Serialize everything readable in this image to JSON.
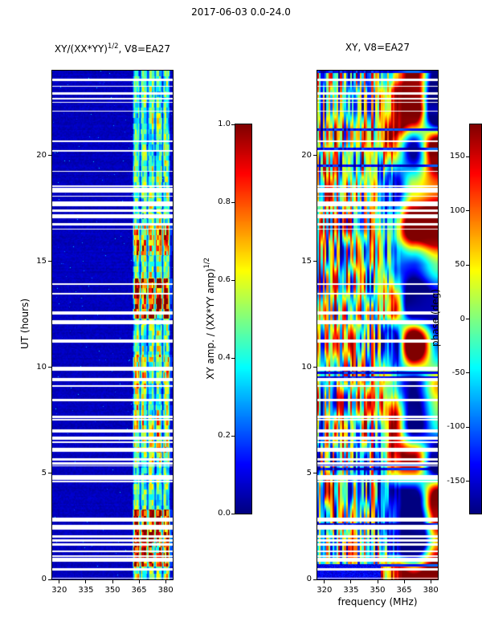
{
  "figure_title": "2017-06-03 0.0-24.0",
  "panels": {
    "left": {
      "title_base": "XY/(XX*YY)",
      "title_sup": "1/2",
      "title_rest": ", V8=EA27",
      "ylabel": "UT (hours)"
    },
    "right": {
      "title": "XY, V8=EA27",
      "xlabel": "frequency (MHz)"
    }
  },
  "colorbars": {
    "amp": {
      "label_base": "XY amp. / (XX*YY amp)",
      "label_sup": "1/2",
      "tick_labels": [
        "0.0",
        "0.2",
        "0.4",
        "0.6",
        "0.8",
        "1.0"
      ]
    },
    "phase": {
      "label": "phase (deg)",
      "tick_labels": [
        "-150",
        "-100",
        "-50",
        "0",
        "50",
        "100",
        "150"
      ]
    }
  },
  "chart_data": [
    {
      "type": "heatmap",
      "panel": "left",
      "title": "XY/(XX*YY)^(1/2), V8=EA27",
      "xlabel": "frequency (MHz)",
      "ylabel": "UT (hours)",
      "xlim": [
        316,
        384
      ],
      "ylim": [
        0,
        24
      ],
      "x_ticks": [
        320,
        335,
        350,
        365,
        380
      ],
      "y_ticks": [
        0,
        5,
        10,
        15,
        20
      ],
      "colormap": "jet",
      "grid": false,
      "colorbar": {
        "label": "XY amp. / (XX*YY amp)^(1/2)",
        "range": [
          0.0,
          1.0
        ],
        "ticks": [
          0.0,
          0.2,
          0.4,
          0.6,
          0.8,
          1.0
        ]
      },
      "content": {
        "background_level": 0.05,
        "active_band_mhz": [
          361.5,
          383.5
        ],
        "band_typical_level": [
          0.2,
          0.6
        ],
        "strong_burst_intervals_ut": [
          [
            0.6,
            3.3
          ],
          [
            12.3,
            14.2
          ],
          [
            15.3,
            16.7
          ]
        ],
        "moderate_intervals_ut": [
          [
            5.5,
            8.2
          ],
          [
            9.0,
            10.6
          ],
          [
            16.7,
            24.0
          ]
        ],
        "sub_band_separation_mhz": 4.2,
        "data_gaps": "numerous full-width white rows (missing scans), densest near UT 0-7, 16.4-18.6 and 22.6-24"
      }
    },
    {
      "type": "heatmap",
      "panel": "right",
      "title": "XY, V8=EA27",
      "xlabel": "frequency (MHz)",
      "ylabel": "UT (hours)",
      "xlim": [
        316,
        384
      ],
      "ylim": [
        0,
        24
      ],
      "x_ticks": [
        320,
        335,
        350,
        365,
        380
      ],
      "y_ticks": [
        0,
        5,
        10,
        15,
        20
      ],
      "colormap": "jet",
      "grid": false,
      "colorbar": {
        "label": "phase (deg)",
        "range": [
          -180,
          180
        ],
        "ticks": [
          -150,
          -100,
          -50,
          0,
          50,
          100,
          150
        ]
      },
      "content": {
        "pattern": "XY phase spectrogram: fine vertical frequency striping below ~350 MHz, larger coherent +/-180 deg red/blue patches above ~350 MHz (strongest UT 16-24), dark-blue horizontal streak rows scattered, dark corner below UT ~0.7 at f<352",
        "data_gaps": "same full-width white missing-scan rows as left panel"
      }
    }
  ]
}
